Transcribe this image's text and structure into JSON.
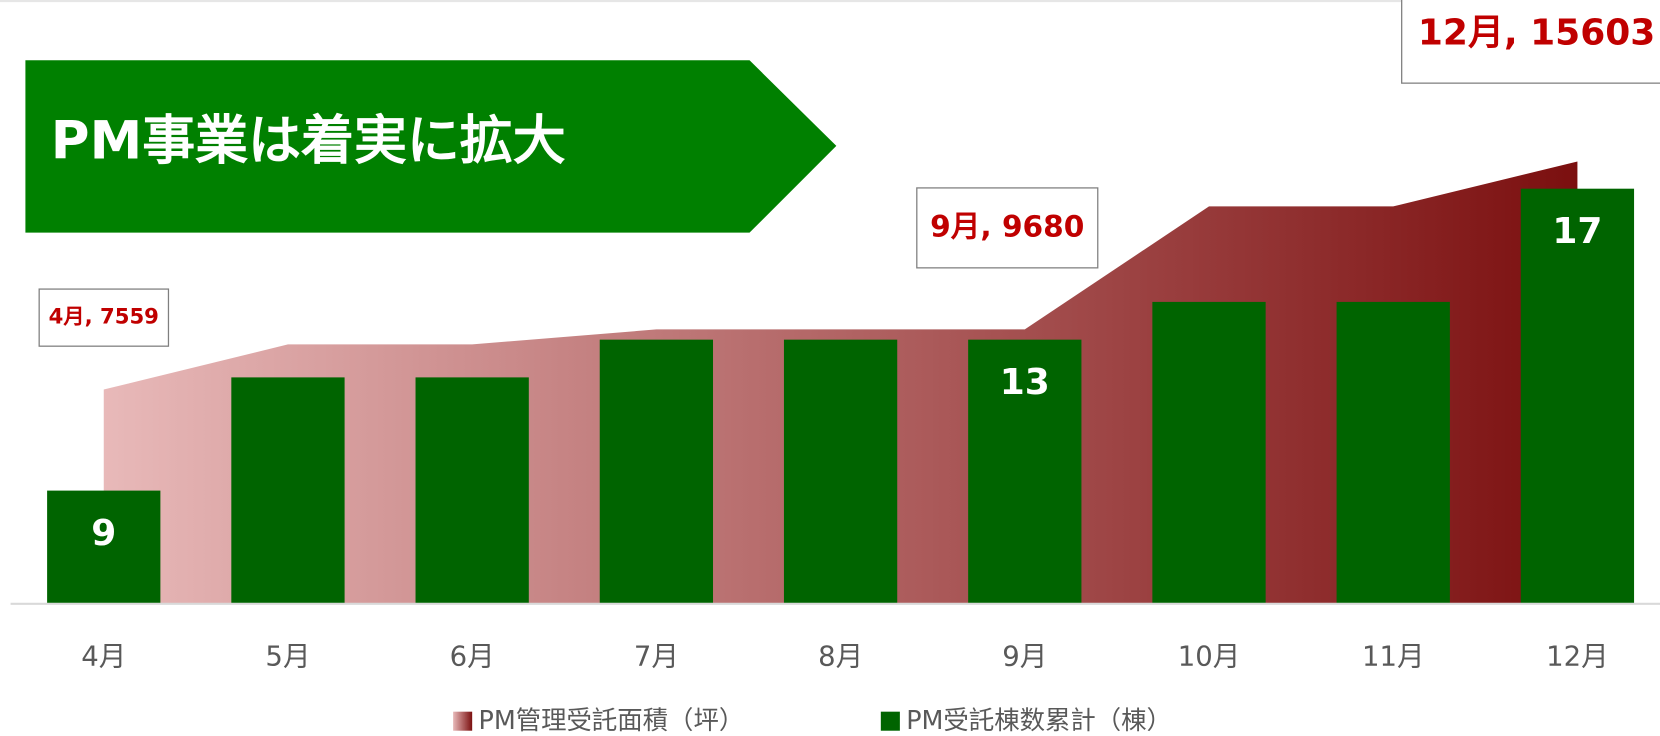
{
  "chart_data": {
    "type": "bar-area",
    "title": "PM事業は着実に拡大",
    "categories": [
      "4月",
      "5月",
      "6月",
      "7月",
      "8月",
      "9月",
      "10月",
      "11月",
      "12月"
    ],
    "ylim": [
      0,
      21300
    ],
    "y2lim": [
      6,
      22
    ],
    "series": [
      {
        "name": "PM管理受託面積（坪）",
        "type": "area",
        "color": [
          "#e8b9b9",
          "#7b0f0f"
        ],
        "values": [
          7559,
          9150,
          9150,
          9680,
          9680,
          9680,
          14020,
          14020,
          15603
        ],
        "value_labels": [
          "4月, 7559",
          null,
          null,
          null,
          null,
          "9月, 9680",
          null,
          null,
          "12月, 15603"
        ]
      },
      {
        "name": "PM受託棟数累計（棟）",
        "type": "bar",
        "axis": "y2",
        "color": "#006400",
        "values": [
          9,
          12,
          12,
          13,
          13,
          13,
          14,
          14,
          17
        ],
        "value_labels": [
          "9",
          null,
          null,
          null,
          null,
          "13",
          null,
          null,
          "17"
        ]
      }
    ]
  }
}
